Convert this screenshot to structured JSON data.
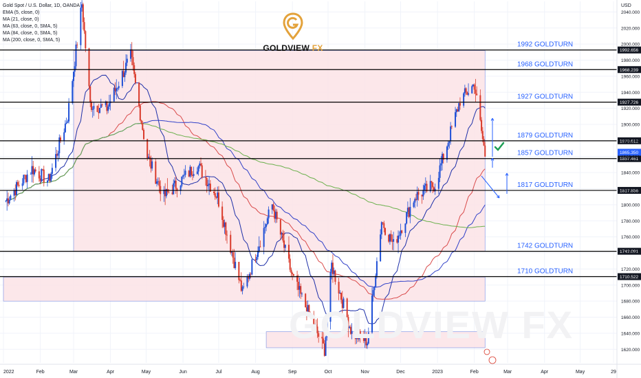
{
  "header": {
    "symbol": "Gold Spot / U.S. Dollar, 1D, OANDA",
    "indicators": [
      "EMA (5, close, 0)",
      "MA (21, close, 0)",
      "MA (63, close, 0, SMA, 5)",
      "MA (84, close, 0, SMA, 5)",
      "MA (200, close, 0, SMA, 5)"
    ]
  },
  "logo": {
    "brand": "GOLDVIEW",
    "suffix": "FX"
  },
  "watermark": "GOLDVIEW FX",
  "colors": {
    "up": "#1e4fd6",
    "down": "#d93a2b",
    "zone_fill": "#fbe3e6",
    "zone_stroke": "#8a9ce6",
    "level_label": "#2962ff",
    "ma21": "#1c2ea8",
    "ma63": "#d94a4a",
    "ma84": "#3040c8",
    "ma200": "#6ab04c",
    "check": "#1d9e55"
  },
  "chart_data": {
    "type": "candlestick",
    "currency": "USD",
    "x_ticks": [
      "2022",
      "Feb",
      "Mar",
      "Apr",
      "May",
      "Jun",
      "Jul",
      "Aug",
      "Sep",
      "Oct",
      "Nov",
      "Dec",
      "2023",
      "Feb",
      "Mar",
      "Apr",
      "May",
      "29"
    ],
    "y_ticks": [
      1620,
      1640,
      1660,
      1680,
      1700,
      1720,
      1740,
      1760,
      1780,
      1800,
      1820,
      1840,
      1860,
      1880,
      1900,
      1920,
      1940,
      1960,
      1980,
      2000,
      2020,
      2040
    ],
    "ylim": [
      1610,
      2060
    ],
    "levels": [
      {
        "value": 1992.656,
        "price_label": "1992.656",
        "label": "1992 GOLDTURN"
      },
      {
        "value": 1968.239,
        "price_label": "1968.239",
        "label": "1968 GOLDTURN"
      },
      {
        "value": 1927.726,
        "price_label": "1927.726",
        "label": "1927 GOLDTURN"
      },
      {
        "value": 1879.612,
        "price_label": "1879.612",
        "label": "1879 GOLDTURN"
      },
      {
        "value": 1857.461,
        "price_label": "1857.461",
        "label": "1857 GOLDTURN"
      },
      {
        "value": 1817.856,
        "price_label": "1817.856",
        "label": "1817 GOLDTURN"
      },
      {
        "value": 1742.091,
        "price_label": "1742.091",
        "label": "1742 GOLDTURN"
      },
      {
        "value": 1710.522,
        "price_label": "1710.522",
        "label": "1710 GOLDTURN"
      }
    ],
    "current_price": {
      "value": 1865.35,
      "label": "1865.350"
    },
    "zones": [
      {
        "from": "2022-03-01",
        "to": "2023-02-10",
        "low": 1742,
        "high": 1992
      },
      {
        "from": "2022-01-01",
        "to": "2023-02-10",
        "low": 1680,
        "high": 1710
      },
      {
        "from": "2022-08-10",
        "to": "2023-02-10",
        "low": 1622,
        "high": 1642
      }
    ],
    "ohlc_anchors": [
      [
        "2022-01-03",
        1805
      ],
      [
        "2022-01-25",
        1845
      ],
      [
        "2022-02-08",
        1830
      ],
      [
        "2022-02-24",
        1910
      ],
      [
        "2022-03-08",
        2050
      ],
      [
        "2022-03-15",
        1925
      ],
      [
        "2022-03-29",
        1920
      ],
      [
        "2022-04-18",
        1985
      ],
      [
        "2022-05-02",
        1860
      ],
      [
        "2022-05-16",
        1810
      ],
      [
        "2022-06-13",
        1850
      ],
      [
        "2022-06-30",
        1810
      ],
      [
        "2022-07-21",
        1690
      ],
      [
        "2022-08-15",
        1800
      ],
      [
        "2022-09-01",
        1710
      ],
      [
        "2022-09-28",
        1620
      ],
      [
        "2022-10-04",
        1725
      ],
      [
        "2022-10-21",
        1640
      ],
      [
        "2022-11-03",
        1630
      ],
      [
        "2022-11-15",
        1780
      ],
      [
        "2022-11-25",
        1750
      ],
      [
        "2022-12-13",
        1810
      ],
      [
        "2022-12-30",
        1825
      ],
      [
        "2023-01-20",
        1930
      ],
      [
        "2023-02-01",
        1950
      ],
      [
        "2023-02-10",
        1862
      ]
    ]
  }
}
